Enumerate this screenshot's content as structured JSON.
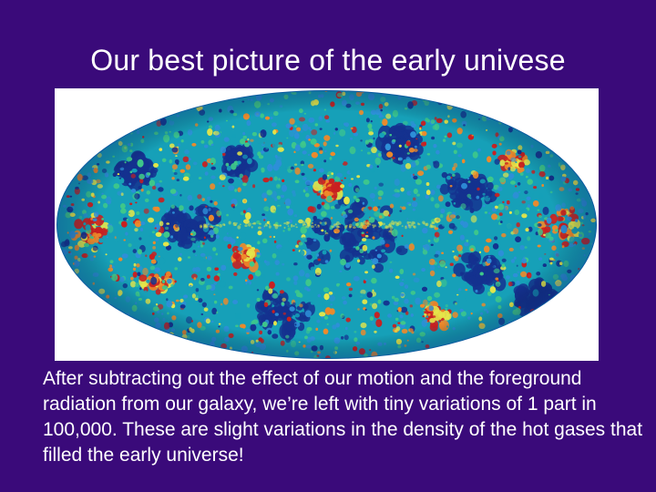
{
  "slide": {
    "title": "Our best picture of the early univese",
    "image": {
      "subject": "cmb-sky-map",
      "colors": {
        "ocean": "#16a0b8",
        "deep": "#14318f",
        "mid": "#2e8fd8",
        "green": "#3fc88a",
        "yellow": "#e4e64a",
        "orange": "#ee8a2a",
        "red": "#c92020",
        "edge": "#0c5aa0"
      }
    },
    "caption": "After subtracting out the effect of our motion and the foreground radiation from our galaxy, we’re left with tiny variations of 1 part in 100,000.  These are slight variations in the density of the hot gases that filled the early universe!"
  },
  "theme": {
    "background": "#3a0a7a",
    "text": "#ffffff"
  }
}
